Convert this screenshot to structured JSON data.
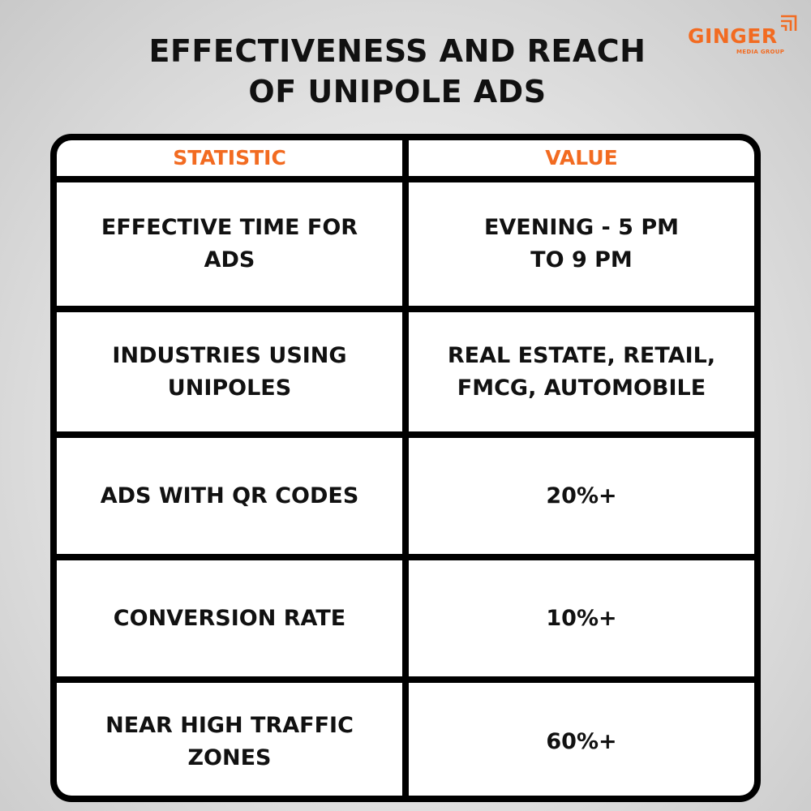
{
  "title": {
    "line1": "EFFECTIVENESS AND REACH",
    "line2": "OF UNIPOLE ADS"
  },
  "logo": {
    "word": "GINGER",
    "subtitle": "MEDIA GROUP",
    "mark_icon": "signal-bars-icon",
    "color": "#f26b21"
  },
  "colors": {
    "accent": "#f26b21",
    "border": "#000000",
    "text": "#111111"
  },
  "table": {
    "headers": {
      "statistic": "STATISTIC",
      "value": "VALUE"
    },
    "rows": [
      {
        "statistic": "EFFECTIVE TIME FOR\nADS",
        "value": "EVENING - 5 PM\nTO 9 PM"
      },
      {
        "statistic": "INDUSTRIES USING\nUNIPOLES",
        "value": "REAL ESTATE, RETAIL,\nFMCG, AUTOMOBILE"
      },
      {
        "statistic": "ADS WITH QR CODES",
        "value": "20%+"
      },
      {
        "statistic": "CONVERSION RATE",
        "value": "10%+"
      },
      {
        "statistic": "NEAR HIGH TRAFFIC\nZONES",
        "value": "60%+"
      }
    ]
  }
}
